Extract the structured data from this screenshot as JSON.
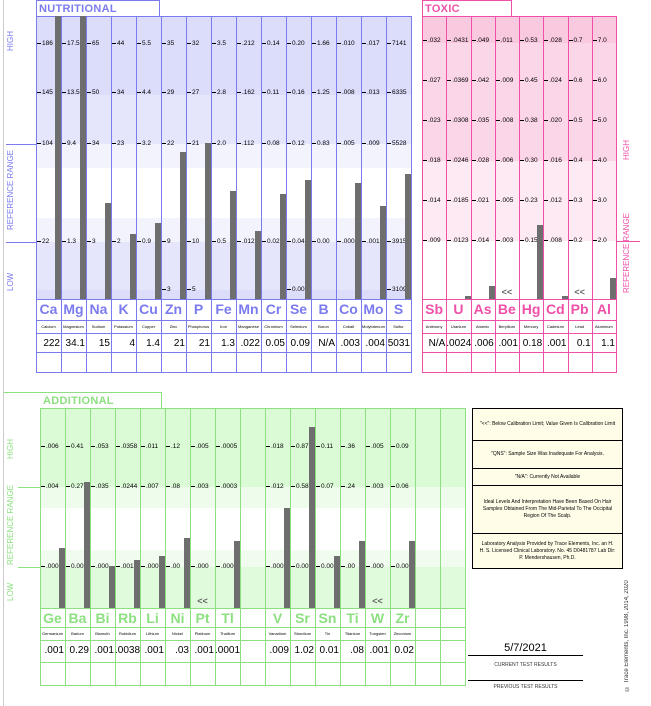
{
  "colors": {
    "nutritional": "#7b7bf0",
    "toxic": "#f050a8",
    "additional": "#8ce080",
    "bar": "#6e6e6e"
  },
  "chart_data": [
    {
      "type": "bar",
      "title": "NUTRITIONAL ELEMENTS",
      "axis_labels": {
        "high": "HIGH",
        "reference": "REFERENCE RANGE",
        "low": "LOW"
      },
      "elements": [
        {
          "symbol": "Ca",
          "name": "Calcium",
          "value": "222",
          "ticks": [
            "186",
            "145",
            "104",
            "22"
          ],
          "low_tick": "",
          "level": 1.0
        },
        {
          "symbol": "Mg",
          "name": "Magnesium",
          "value": "34.1",
          "ticks": [
            "17.5",
            "13.5",
            "9.4",
            "1.3"
          ],
          "low_tick": "",
          "level": 1.0
        },
        {
          "symbol": "Na",
          "name": "Sodium",
          "value": "15",
          "ticks": [
            "65",
            "50",
            "34",
            "3"
          ],
          "low_tick": "",
          "level": 0.34
        },
        {
          "symbol": "K",
          "name": "Potassium",
          "value": "4",
          "ticks": [
            "44",
            "34",
            "23",
            "2"
          ],
          "low_tick": "",
          "level": 0.23
        },
        {
          "symbol": "Cu",
          "name": "Copper",
          "value": "1.4",
          "ticks": [
            "5.5",
            "4.4",
            "3.2",
            "0.9"
          ],
          "low_tick": "",
          "level": 0.27
        },
        {
          "symbol": "Zn",
          "name": "Zinc",
          "value": "21",
          "ticks": [
            "35",
            "29",
            "22",
            "9"
          ],
          "low_tick": "3",
          "level": 0.52
        },
        {
          "symbol": "P",
          "name": "Phosphorus",
          "value": "21",
          "ticks": [
            "32",
            "27",
            "21",
            "10"
          ],
          "low_tick": "5",
          "level": 0.55
        },
        {
          "symbol": "Fe",
          "name": "Iron",
          "value": "1.3",
          "ticks": [
            "3.5",
            "2.8",
            "2.0",
            "0.5"
          ],
          "low_tick": "",
          "level": 0.38
        },
        {
          "symbol": "Mn",
          "name": "Manganese",
          "value": ".022",
          "ticks": [
            ".212",
            ".162",
            ".112",
            ".012"
          ],
          "low_tick": "",
          "level": 0.24
        },
        {
          "symbol": "Cr",
          "name": "Chromium",
          "value": "0.05",
          "ticks": [
            "0.14",
            "0.11",
            "0.08",
            "0.02"
          ],
          "low_tick": "",
          "level": 0.37
        },
        {
          "symbol": "Se",
          "name": "Selenium",
          "value": "0.09",
          "ticks": [
            "0.20",
            "0.16",
            "0.12",
            "0.04"
          ],
          "low_tick": "0.00",
          "level": 0.42
        },
        {
          "symbol": "B",
          "name": "Boron",
          "value": "N/A",
          "ticks": [
            "1.66",
            "1.25",
            "0.83",
            "0.00"
          ],
          "low_tick": "",
          "level": 0
        },
        {
          "symbol": "Co",
          "name": "Cobalt",
          "value": ".003",
          "ticks": [
            ".010",
            ".008",
            ".005",
            ".000"
          ],
          "low_tick": "",
          "level": 0.41
        },
        {
          "symbol": "Mo",
          "name": "Molybdenum",
          "value": ".004",
          "ticks": [
            ".017",
            ".013",
            ".009",
            ".001"
          ],
          "low_tick": "",
          "level": 0.33
        },
        {
          "symbol": "S",
          "name": "Sulfur",
          "value": "5031",
          "ticks": [
            "7141",
            "6335",
            "5528",
            "3915"
          ],
          "low_tick": "3109",
          "level": 0.44
        }
      ]
    },
    {
      "type": "bar",
      "title": "TOXIC ELEMENTS",
      "axis_labels": {
        "high": "HIGH",
        "reference": "REFERENCE RANGE"
      },
      "elements": [
        {
          "symbol": "Sb",
          "name": "Antimony",
          "value": "N/A",
          "ticks": [
            ".032",
            ".027",
            ".023",
            ".018",
            ".014",
            ".009"
          ],
          "below": false,
          "level": 0
        },
        {
          "symbol": "U",
          "name": "Uranium",
          "value": ".0024",
          "ticks": [
            ".0431",
            ".0369",
            ".0308",
            ".0246",
            ".0185",
            ".0123"
          ],
          "below": false,
          "level": 0.01
        },
        {
          "symbol": "As",
          "name": "Arsenic",
          "value": ".006",
          "ticks": [
            ".049",
            ".042",
            ".035",
            ".028",
            ".021",
            ".014"
          ],
          "below": false,
          "level": 0.045
        },
        {
          "symbol": "Be",
          "name": "Beryllium",
          "value": ".001",
          "ticks": [
            ".011",
            ".009",
            ".008",
            ".006",
            ".005",
            ".003"
          ],
          "below": true,
          "level": 0
        },
        {
          "symbol": "Hg",
          "name": "Mercury",
          "value": "0.18",
          "ticks": [
            "0.53",
            "0.45",
            "0.38",
            "0.30",
            "0.23",
            "0.15"
          ],
          "below": false,
          "level": 0.26
        },
        {
          "symbol": "Cd",
          "name": "Cadmium",
          "value": ".001",
          "ticks": [
            ".028",
            ".024",
            ".020",
            ".016",
            ".012",
            ".008"
          ],
          "below": false,
          "level": 0.01
        },
        {
          "symbol": "Pb",
          "name": "Lead",
          "value": "0.1",
          "ticks": [
            "0.7",
            "0.6",
            "0.5",
            "0.4",
            "0.3",
            "0.2"
          ],
          "below": true,
          "level": 0
        },
        {
          "symbol": "Al",
          "name": "Aluminum",
          "value": "1.1",
          "ticks": [
            "7.0",
            "6.0",
            "5.0",
            "4.0",
            "3.0",
            "2.0"
          ],
          "below": false,
          "level": 0.075
        }
      ]
    },
    {
      "type": "bar",
      "title": "ADDITIONAL ELEMENTS",
      "axis_labels": {
        "high": "HIGH",
        "reference": "REFERENCE RANGE",
        "low": "LOW"
      },
      "elements": [
        {
          "symbol": "Ge",
          "name": "Germanium",
          "value": ".001",
          "ticks": [
            ".006",
            ".004",
            ".000"
          ],
          "below": false,
          "level": 0.3
        },
        {
          "symbol": "Ba",
          "name": "Barium",
          "value": "0.29",
          "ticks": [
            "0.41",
            "0.27",
            "0.00"
          ],
          "below": false,
          "level": 0.63
        },
        {
          "symbol": "Bi",
          "name": "Bismuth",
          "value": ".001",
          "ticks": [
            ".053",
            ".035",
            ".000"
          ],
          "below": false,
          "level": 0.21
        },
        {
          "symbol": "Rb",
          "name": "Rubidium",
          "value": ".0038",
          "ticks": [
            ".0358",
            ".0244",
            ".0017"
          ],
          "below": false,
          "level": 0.24
        },
        {
          "symbol": "Li",
          "name": "Lithium",
          "value": ".001",
          "ticks": [
            ".011",
            ".007",
            ".000"
          ],
          "below": false,
          "level": 0.26
        },
        {
          "symbol": "Ni",
          "name": "Nickel",
          "value": ".03",
          "ticks": [
            ".12",
            ".08",
            ".00"
          ],
          "below": false,
          "level": 0.35
        },
        {
          "symbol": "Pt",
          "name": "Platinum",
          "value": ".001",
          "ticks": [
            ".005",
            ".003",
            ".000"
          ],
          "below": true,
          "level": 0
        },
        {
          "symbol": "Tl",
          "name": "Thallium",
          "value": ".0001",
          "ticks": [
            ".0005",
            ".0003",
            ".0000"
          ],
          "below": false,
          "level": 0.335
        },
        {
          "symbol": "",
          "name": "",
          "value": "",
          "ticks": [
            "",
            "",
            ""
          ],
          "below": false,
          "level": 0
        },
        {
          "symbol": "V",
          "name": "Vanadium",
          "value": ".009",
          "ticks": [
            ".018",
            ".012",
            ".000"
          ],
          "below": false,
          "level": 0.5
        },
        {
          "symbol": "Sr",
          "name": "Strontium",
          "value": "1.02",
          "ticks": [
            "0.87",
            "0.58",
            "0.00"
          ],
          "below": false,
          "level": 0.905
        },
        {
          "symbol": "Sn",
          "name": "Tin",
          "value": "0.01",
          "ticks": [
            "0.11",
            "0.07",
            "0.00"
          ],
          "below": false,
          "level": 0.26
        },
        {
          "symbol": "Ti",
          "name": "Titanium",
          "value": ".08",
          "ticks": [
            ".36",
            ".24",
            ".00"
          ],
          "below": false,
          "level": 0.335
        },
        {
          "symbol": "W",
          "name": "Tungsten",
          "value": ".001",
          "ticks": [
            ".005",
            ".003",
            ".000"
          ],
          "below": true,
          "level": 0
        },
        {
          "symbol": "Zr",
          "name": "Zirconium",
          "value": "0.02",
          "ticks": [
            "0.09",
            "0.06",
            "0.00"
          ],
          "below": false,
          "level": 0.335
        },
        {
          "symbol": "",
          "name": "",
          "value": "",
          "ticks": [
            "",
            "",
            ""
          ],
          "below": false,
          "level": 0
        },
        {
          "symbol": "",
          "name": "",
          "value": "",
          "ticks": [
            "",
            "",
            ""
          ],
          "below": false,
          "level": 0
        }
      ]
    }
  ],
  "below_marker": "<<",
  "legend": [
    "\"<<\": Below Calibration Limit; Value Given Is Calibration Limit",
    "\"QNS\": Sample Size Was Inadequate For Analysis.",
    "\"N/A\": Currently Not Available",
    "Ideal Levels And Interpretation Have Been Based On Hair Samples Obtained From The Mid-Parietal To The Occipital Region Of The Scalp.",
    "Laboratory Analysis Provided by Trace Elements, Inc. an H. H. S. Licensed Clinical Laboratory. No. 45 D0481787  Lab Dir: P. Mendershausen, Ph.D."
  ],
  "results": {
    "date": "5/7/2021",
    "current_label": "CURRENT TEST RESULTS",
    "previous_label": "PREVIOUS TEST RESULTS"
  },
  "copyright": "© Trace Elements, Inc. 1998, 2014, 2020"
}
